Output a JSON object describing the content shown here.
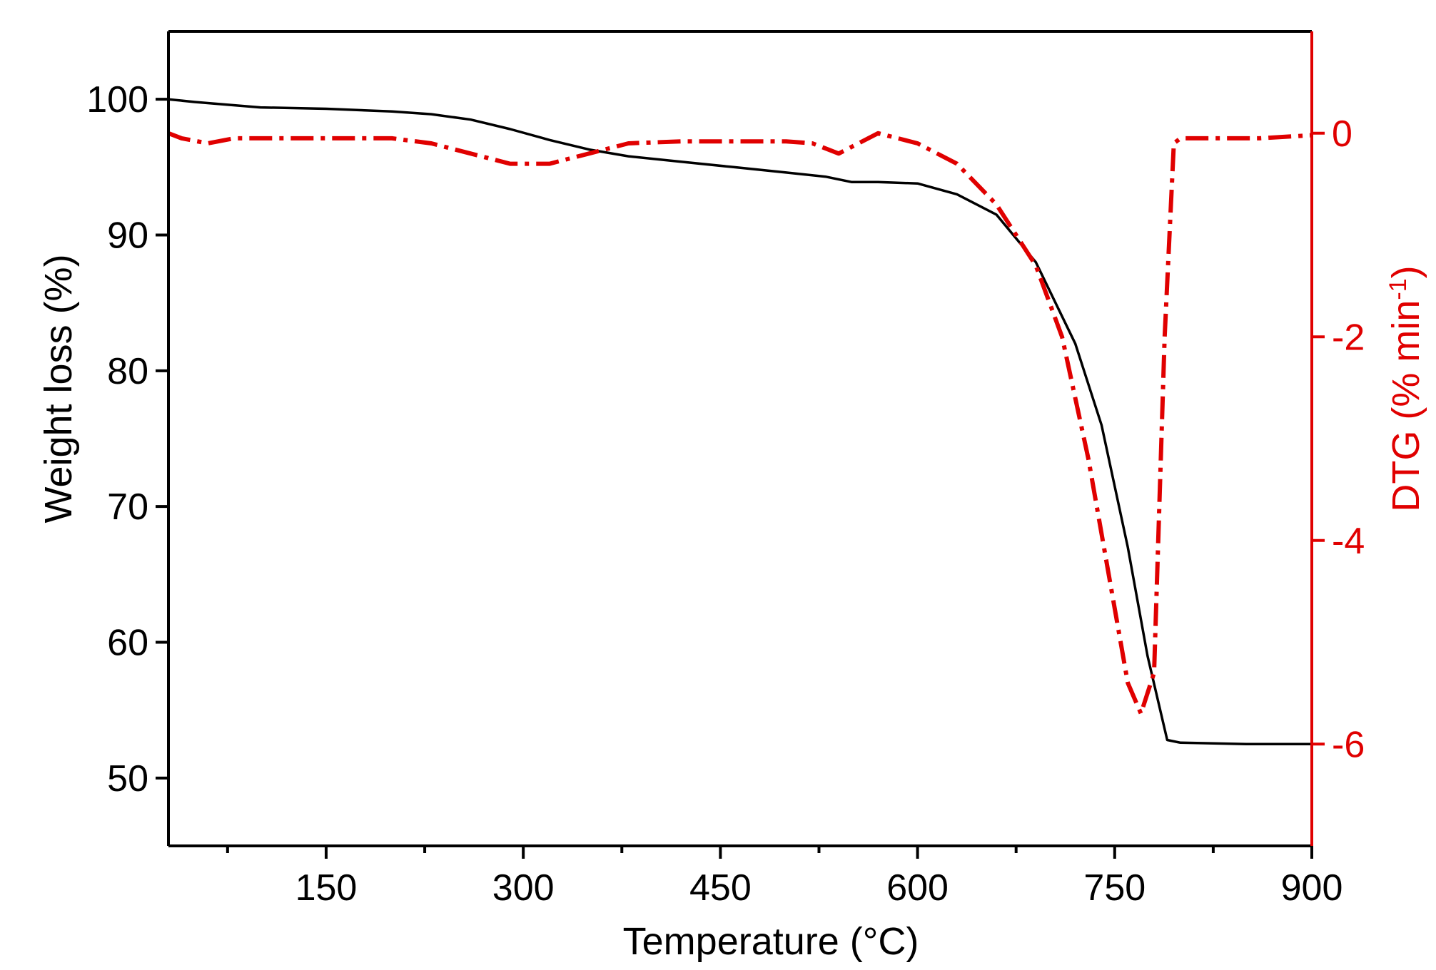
{
  "chart_data": {
    "type": "line",
    "xlabel_main": "Temperature (",
    "xlabel_unit": "°C)",
    "ylabel_left": "Weight loss (%)",
    "ylabel_right_main": "DTG (% min",
    "ylabel_right_sup": "-1",
    "ylabel_right_close": ")",
    "xlim": [
      30,
      900
    ],
    "ylim_left": [
      45,
      105
    ],
    "ylim_right": [
      -7,
      1
    ],
    "x_ticks": [
      150,
      300,
      450,
      600,
      750,
      900
    ],
    "x_tick_labels": [
      "150",
      "300",
      "450",
      "600",
      "750",
      "900"
    ],
    "x_minor_ticks": [
      75,
      225,
      375,
      525,
      675,
      825
    ],
    "y_left_ticks": [
      50,
      60,
      70,
      80,
      90,
      100
    ],
    "y_left_tick_labels": [
      "50",
      "60",
      "70",
      "80",
      "90",
      "100"
    ],
    "y_right_ticks": [
      0,
      -2,
      -4,
      -6
    ],
    "y_right_tick_labels": [
      "0",
      "-2",
      "-4",
      "-6"
    ],
    "colors": {
      "weight": "#000000",
      "dtg": "#e00000",
      "axes": "#000000"
    },
    "series": [
      {
        "axis": "left",
        "style": "solid",
        "x": [
          30,
          50,
          100,
          150,
          200,
          230,
          260,
          290,
          320,
          350,
          380,
          420,
          460,
          500,
          530,
          550,
          570,
          600,
          630,
          660,
          690,
          720,
          740,
          760,
          775,
          790,
          800,
          850,
          900
        ],
        "y": [
          100.0,
          99.8,
          99.4,
          99.3,
          99.1,
          98.9,
          98.5,
          97.8,
          97.0,
          96.3,
          95.8,
          95.4,
          95.0,
          94.6,
          94.3,
          93.9,
          93.9,
          93.8,
          93.0,
          91.5,
          88.0,
          82.0,
          76.0,
          67.0,
          59.0,
          52.8,
          52.6,
          52.5,
          52.5
        ]
      },
      {
        "axis": "right",
        "style": "dash-dot",
        "x": [
          30,
          40,
          60,
          80,
          120,
          160,
          200,
          230,
          260,
          290,
          320,
          350,
          380,
          420,
          460,
          500,
          520,
          540,
          570,
          600,
          630,
          660,
          690,
          710,
          730,
          745,
          760,
          770,
          780,
          788,
          795,
          800,
          820,
          860,
          900
        ],
        "y": [
          0.0,
          -0.05,
          -0.1,
          -0.05,
          -0.05,
          -0.05,
          -0.05,
          -0.1,
          -0.2,
          -0.3,
          -0.3,
          -0.2,
          -0.1,
          -0.08,
          -0.08,
          -0.08,
          -0.1,
          -0.2,
          0.0,
          -0.1,
          -0.3,
          -0.7,
          -1.3,
          -2.0,
          -3.2,
          -4.3,
          -5.4,
          -5.7,
          -5.3,
          -2.0,
          -0.1,
          -0.05,
          -0.05,
          -0.05,
          -0.02
        ]
      }
    ]
  }
}
